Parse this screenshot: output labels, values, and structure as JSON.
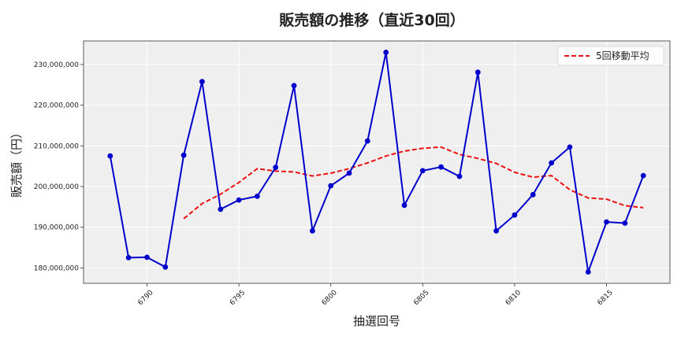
{
  "chart_data": {
    "type": "line",
    "title": "販売額の推移（直近30回）",
    "xlabel": "抽選回号",
    "ylabel": "販売額（円）",
    "x": [
      6788,
      6789,
      6790,
      6791,
      6792,
      6793,
      6794,
      6795,
      6796,
      6797,
      6798,
      6799,
      6800,
      6801,
      6802,
      6803,
      6804,
      6805,
      6806,
      6807,
      6808,
      6809,
      6810,
      6811,
      6812,
      6813,
      6814,
      6815,
      6816,
      6817
    ],
    "xticks": [
      6790,
      6795,
      6800,
      6805,
      6810,
      6815
    ],
    "xtick_labels": [
      "6790",
      "6795",
      "6800",
      "6805",
      "6810",
      "6815"
    ],
    "xlim": [
      6786.55,
      6818.45
    ],
    "ylim": [
      176200000,
      235800000
    ],
    "yticks": [
      180000000,
      190000000,
      200000000,
      210000000,
      220000000,
      230000000
    ],
    "ytick_labels": [
      "180,000,000",
      "190,000,000",
      "200,000,000",
      "210,000,000",
      "220,000,000",
      "230,000,000"
    ],
    "grid": true,
    "legend_position": "top-right",
    "series": [
      {
        "name": "",
        "color": "#0000cc",
        "style": "solid-with-markers",
        "values": [
          207500000,
          182500000,
          182600000,
          180200000,
          207700000,
          225800000,
          194400000,
          196700000,
          197600000,
          204700000,
          224800000,
          189100000,
          200200000,
          203300000,
          211200000,
          233000000,
          195400000,
          203900000,
          204800000,
          202500000,
          228100000,
          189100000,
          193000000,
          198000000,
          205800000,
          209700000,
          179000000,
          191300000,
          191000000,
          202700000
        ]
      },
      {
        "name": "5回移動平均",
        "color": "#ee1111",
        "style": "dashed",
        "values": [
          null,
          null,
          null,
          null,
          192100000,
          195800000,
          198100000,
          201000000,
          204400000,
          203800000,
          203600000,
          202600000,
          203300000,
          204400000,
          205800000,
          207500000,
          208700000,
          209400000,
          209700000,
          207900000,
          206900000,
          205700000,
          203500000,
          202300000,
          202700000,
          199200000,
          197200000,
          196900000,
          195300000,
          194800000
        ]
      }
    ]
  }
}
